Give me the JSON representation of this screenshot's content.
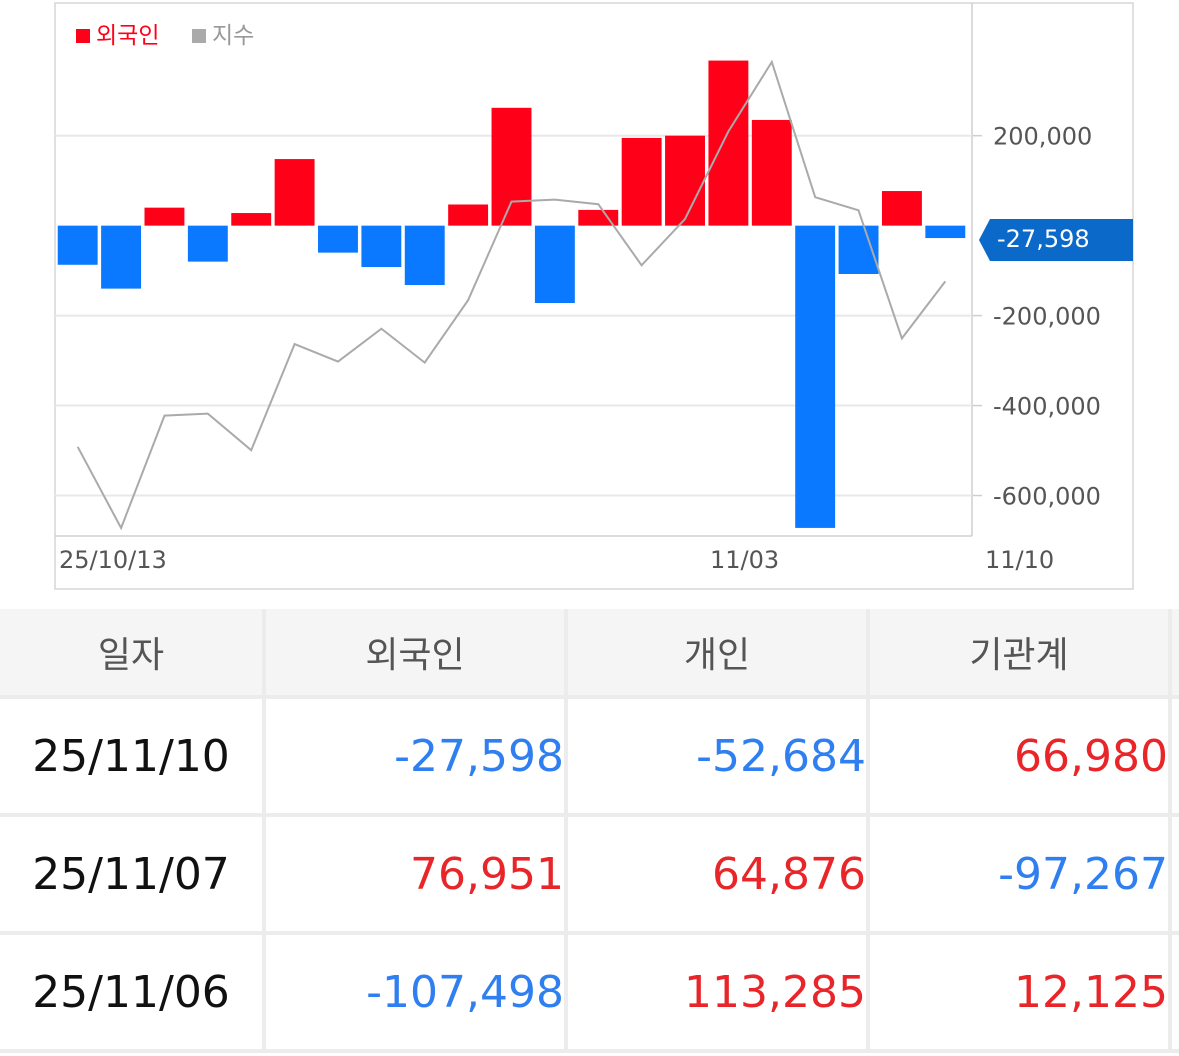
{
  "chart_data": {
    "type": "bar",
    "legend": [
      {
        "label": "외국인",
        "color": "#ff0019"
      },
      {
        "label": "지수",
        "color": "#aaaaaa"
      }
    ],
    "legend_position": "top-left",
    "x_tick_labels": [
      "25/10/13",
      "11/03",
      "11/10"
    ],
    "y_ticks": [
      200000,
      -200000,
      -400000,
      -600000
    ],
    "y_tick_labels": [
      "200,000",
      "-200,000",
      "-400,000",
      "-600,000"
    ],
    "ylim": [
      -690000,
      495000
    ],
    "grid": true,
    "positive_color": "#ff0019",
    "negative_color": "#0a78ff",
    "current_label": "-27,598",
    "current_label_color": "#0a69c9",
    "series": [
      {
        "name": "외국인",
        "values": [
          -87000,
          -140000,
          40000,
          -80000,
          28000,
          148000,
          -60000,
          -92000,
          -132000,
          47000,
          262000,
          -172000,
          35000,
          195000,
          200000,
          367000,
          235000,
          -672000,
          -107498,
          76951,
          -27598
        ]
      },
      {
        "name": "지수",
        "values": [
          0.242,
          0.0,
          0.335,
          0.341,
          0.232,
          0.548,
          0.496,
          0.594,
          0.493,
          0.679,
          0.973,
          0.979,
          0.965,
          0.783,
          0.921,
          1.182,
          1.389,
          0.986,
          0.947,
          0.565,
          0.735
        ]
      }
    ]
  },
  "table": {
    "headers": [
      "일자",
      "외국인",
      "개인",
      "기관계"
    ],
    "rows": [
      {
        "date": "25/11/10",
        "foreign": "-27,598",
        "individual": "-52,684",
        "institution": "66,980"
      },
      {
        "date": "25/11/07",
        "foreign": "76,951",
        "individual": "64,876",
        "institution": "-97,267"
      },
      {
        "date": "25/11/06",
        "foreign": "-107,498",
        "individual": "113,285",
        "institution": "12,125"
      }
    ]
  }
}
